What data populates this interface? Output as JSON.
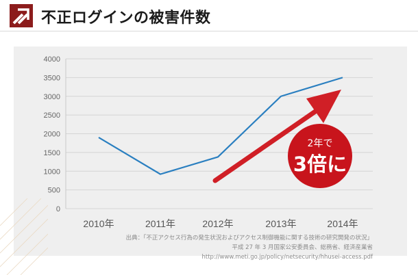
{
  "header": {
    "title": "不正ログインの被害件数",
    "icon": "double-chevron-icon",
    "accent_color": "#8c1c1c"
  },
  "chart_data": {
    "type": "line",
    "title": "不正ログインの被害件数",
    "categories": [
      "2010年",
      "2011年",
      "2012年",
      "2013年",
      "2014年"
    ],
    "series": [
      {
        "values": [
          1900,
          920,
          1380,
          3000,
          3500
        ],
        "color": "#2a7fc0"
      }
    ],
    "yticks": [
      "0",
      "500",
      "1000",
      "1500",
      "2000",
      "2500",
      "3000",
      "3500",
      "4000"
    ],
    "ylim": [
      0,
      4000
    ],
    "grid": true,
    "trend_arrow_color": "#d01f26",
    "badge": {
      "line1": "2年で",
      "line2": "3倍に",
      "color": "#c8141c"
    }
  },
  "source": {
    "line1": "出典：「不正アクセス行為の発生状況およびアクセス制御機能に関する技術の研究開発の状況」",
    "line2": "平成 27 年 3 月国家公安委員会、総務省、経済産業省",
    "line3": "http://www.meti.go.jp/policy/netsecurity/hhusei-access.pdf"
  }
}
